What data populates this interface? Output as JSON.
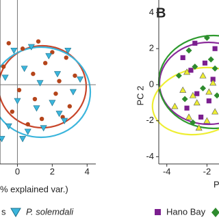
{
  "chart_data": [
    {
      "type": "scatter",
      "x_label": "% explained var.)",
      "xlim": [
        -1,
        4.5
      ],
      "ylim": [
        -4.4,
        4.7
      ],
      "xticks": [
        0,
        2,
        4
      ],
      "zero_lines": true,
      "series": [
        {
          "name": "s",
          "color": "#b5451b",
          "marker": "circle",
          "x": [
            -0.5,
            0.3,
            1.2,
            2.0,
            2.8,
            3.3,
            -0.8,
            0.9,
            1.6,
            2.4,
            0.1,
            1.0,
            2.2,
            3.0,
            -0.3,
            1.4,
            2.6,
            0.6
          ],
          "values": [
            2.3,
            2.0,
            2.4,
            1.8,
            1.5,
            0.5,
            1.0,
            0.6,
            1.2,
            0.2,
            -0.3,
            -0.8,
            -0.5,
            -1.2,
            -1.5,
            -1.9,
            -1.8,
            -2.2
          ]
        },
        {
          "name": "P. solemdali",
          "color": "#3bb5dc",
          "marker": "triangle-down",
          "x": [
            -0.2,
            0.8,
            1.8,
            2.9,
            3.6,
            -0.7,
            0.4,
            1.3,
            2.3,
            3.2,
            0.0,
            1.1,
            2.0,
            2.7,
            -0.5,
            0.6,
            1.5,
            0.3,
            -0.9,
            2.4
          ],
          "values": [
            1.9,
            2.1,
            1.6,
            1.9,
            0.3,
            0.4,
            0.9,
            0.1,
            0.6,
            -0.4,
            -0.9,
            -1.3,
            -1.0,
            -2.0,
            -2.3,
            -2.6,
            -2.4,
            -3.0,
            -3.0,
            -1.6
          ]
        }
      ]
    },
    {
      "type": "scatter",
      "panel_label": "B",
      "x_label": "P",
      "y_label": "PC 2",
      "xlim": [
        -4.4,
        -1.4
      ],
      "ylim": [
        -4.4,
        4.7
      ],
      "xticks": [
        -4,
        -2
      ],
      "yticks": [
        4,
        2,
        0,
        -2,
        -4
      ],
      "series": [
        {
          "name": "Hano Bay",
          "color": "#7b1f8f",
          "marker": "square",
          "x": [
            -3.2,
            -2.8,
            -2.5,
            -2.1,
            -1.7,
            -3.0,
            -2.3,
            -1.9,
            -1.6,
            -2.6
          ],
          "values": [
            1.5,
            0.8,
            -0.5,
            1.2,
            0.3,
            -1.3,
            -1.8,
            -0.9,
            2.0,
            2.3
          ]
        },
        {
          "color": "#2e8b2e",
          "marker": "diamond",
          "x": [
            -3.4,
            -2.9,
            -2.6,
            -2.2,
            -1.8,
            -1.5,
            -2.7,
            -2.0,
            -3.1,
            -1.6
          ],
          "values": [
            0.5,
            1.9,
            1.0,
            -0.2,
            1.4,
            -0.6,
            -2.1,
            2.6,
            -0.8,
            0.9
          ]
        },
        {
          "color": "#eeee33",
          "marker": "triangle",
          "x": [
            -3.6,
            -3.2,
            -2.9,
            -2.5,
            -2.2,
            -1.9,
            -1.6,
            -3.0,
            -2.4,
            -2.0,
            -1.7,
            -2.7
          ],
          "values": [
            -1.2,
            -0.3,
            -1.8,
            -1.0,
            0.5,
            -0.4,
            -1.5,
            0.7,
            -2.4,
            -2.0,
            0.1,
            -0.6
          ]
        }
      ]
    }
  ]
}
